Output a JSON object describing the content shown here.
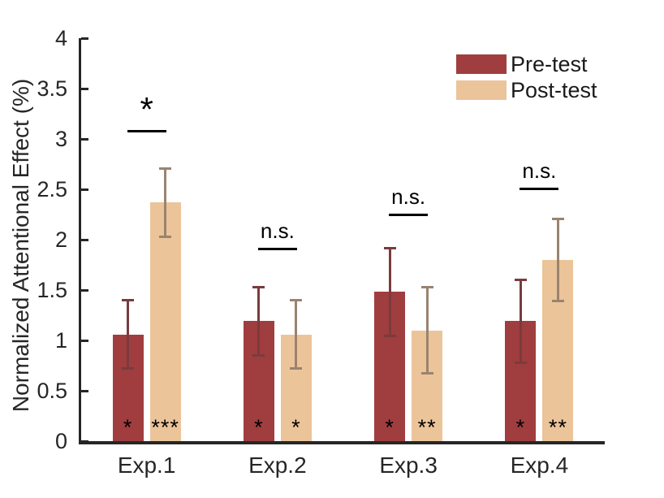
{
  "chart_data": {
    "type": "bar",
    "title": "",
    "ylabel": "Normalized Attentional Effect (%)",
    "xlabel": "",
    "ylim": [
      0,
      4
    ],
    "yticks": [
      "0",
      "0.5",
      "1",
      "1.5",
      "2",
      "2.5",
      "3",
      "3.5",
      "4"
    ],
    "categories": [
      "Exp.1",
      "Exp.2",
      "Exp.3",
      "Exp.4"
    ],
    "series": [
      {
        "name": "Pre-test",
        "color": "#A03D3E",
        "error_color": "#7A3B3F",
        "values": [
          1.06,
          1.19,
          1.48,
          1.19
        ],
        "errors": [
          0.35,
          0.35,
          0.45,
          0.42
        ],
        "bar_significance": [
          "*",
          "*",
          "*",
          "*"
        ]
      },
      {
        "name": "Post-test",
        "color": "#ECC49A",
        "error_color": "#9A8470",
        "values": [
          2.37,
          1.06,
          1.1,
          1.8
        ],
        "errors": [
          0.35,
          0.35,
          0.44,
          0.42
        ],
        "bar_significance": [
          "***",
          "*",
          "**",
          "**"
        ]
      }
    ],
    "comparisons": [
      {
        "category": "Exp.1",
        "label": "*",
        "line_y": 3.09
      },
      {
        "category": "Exp.2",
        "label": "n.s.",
        "line_y": 1.92
      },
      {
        "category": "Exp.3",
        "label": "n.s.",
        "line_y": 2.26
      },
      {
        "category": "Exp.4",
        "label": "n.s.",
        "line_y": 2.52
      }
    ],
    "legend": {
      "position": "top-right",
      "entries": [
        "Pre-test",
        "Post-test"
      ]
    },
    "grid": false,
    "axis_color": "#262626",
    "annotation_color": "#000000"
  }
}
